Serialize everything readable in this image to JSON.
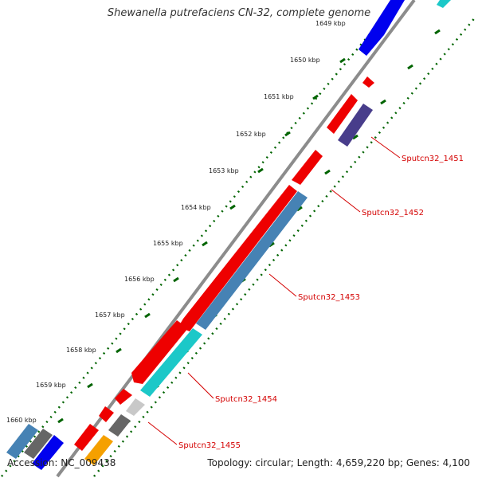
{
  "header": {
    "title": "Shewanella putrefaciens CN-32, complete genome"
  },
  "footer": {
    "accession": "Accession: NC_009438",
    "stats": "Topology: circular; Length: 4,659,220 bp; Genes: 4,100"
  },
  "kbp_ticks": [
    "1649 kbp",
    "1650 kbp",
    "1651 kbp",
    "1652 kbp",
    "1653 kbp",
    "1654 kbp",
    "1655 kbp",
    "1656 kbp",
    "1657 kbp",
    "1658 kbp",
    "1659 kbp",
    "1660 kbp"
  ],
  "gene_labels": [
    "Sputcn32_1451",
    "Sputcn32_1452",
    "Sputcn32_1453",
    "Sputcn32_1454",
    "Sputcn32_1455"
  ],
  "colors": {
    "forward_cds": "#ee0000",
    "reverse_blue": "#4682b4",
    "reverse_cyan": "#1cc8c8",
    "dark_purple": "#483d8b",
    "gray": "#666666",
    "light_gray": "#c8c8c8",
    "orange": "#f5a000",
    "bright_blue": "#0000ee",
    "backbone": "#8c8c8c",
    "tick_green": "#006400",
    "label_red": "#d40000"
  }
}
